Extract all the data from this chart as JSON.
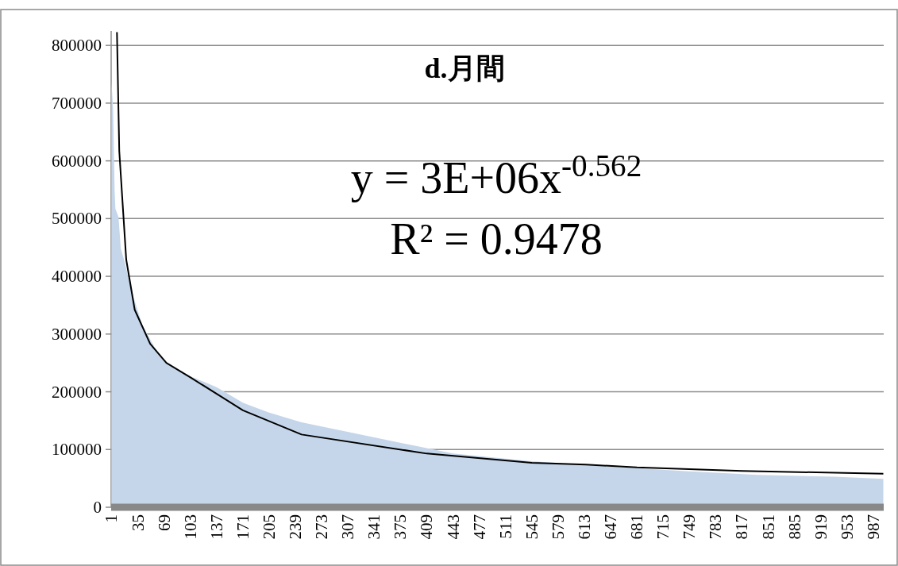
{
  "chart_data": {
    "type": "area",
    "title": "d.月間",
    "x": [
      1,
      3,
      5,
      6,
      10,
      13,
      18,
      27,
      41,
      58,
      72,
      103,
      137,
      171,
      205,
      247,
      345,
      443,
      542,
      641,
      739,
      838,
      937,
      1000
    ],
    "series": [
      {
        "color": "#c5d6ea",
        "values": [
          737000,
          690000,
          548000,
          517000,
          503000,
          448000,
          425000,
          374000,
          315000,
          274000,
          250000,
          227000,
          208000,
          181000,
          164000,
          147000,
          120000,
          93000,
          80000,
          71000,
          63000,
          56000,
          53000,
          49000
        ]
      },
      {
        "type": "line",
        "color": "#000000",
        "x": [
          8,
          11,
          20,
          31,
          51,
          72,
          103,
          171,
          247,
          409,
          545,
          615,
          681,
          817,
          1000
        ],
        "values": [
          823000,
          617000,
          429000,
          342000,
          283000,
          250000,
          225000,
          168000,
          126000,
          93000,
          77000,
          74000,
          69000,
          63000,
          58000
        ]
      }
    ],
    "xlim": [
      0.5,
      1000.5
    ],
    "ylim": [
      0,
      825000
    ],
    "xticks": [
      1,
      35,
      69,
      103,
      137,
      171,
      205,
      239,
      273,
      307,
      341,
      375,
      409,
      443,
      477,
      511,
      545,
      579,
      613,
      647,
      681,
      715,
      749,
      783,
      817,
      851,
      885,
      919,
      953,
      987
    ],
    "yticks": [
      0,
      100000,
      200000,
      300000,
      400000,
      500000,
      600000,
      700000,
      800000
    ],
    "grid": "y",
    "annotations": [
      "y = 3E+06x$^{-0.562}$",
      "R² = 0.9478"
    ]
  }
}
